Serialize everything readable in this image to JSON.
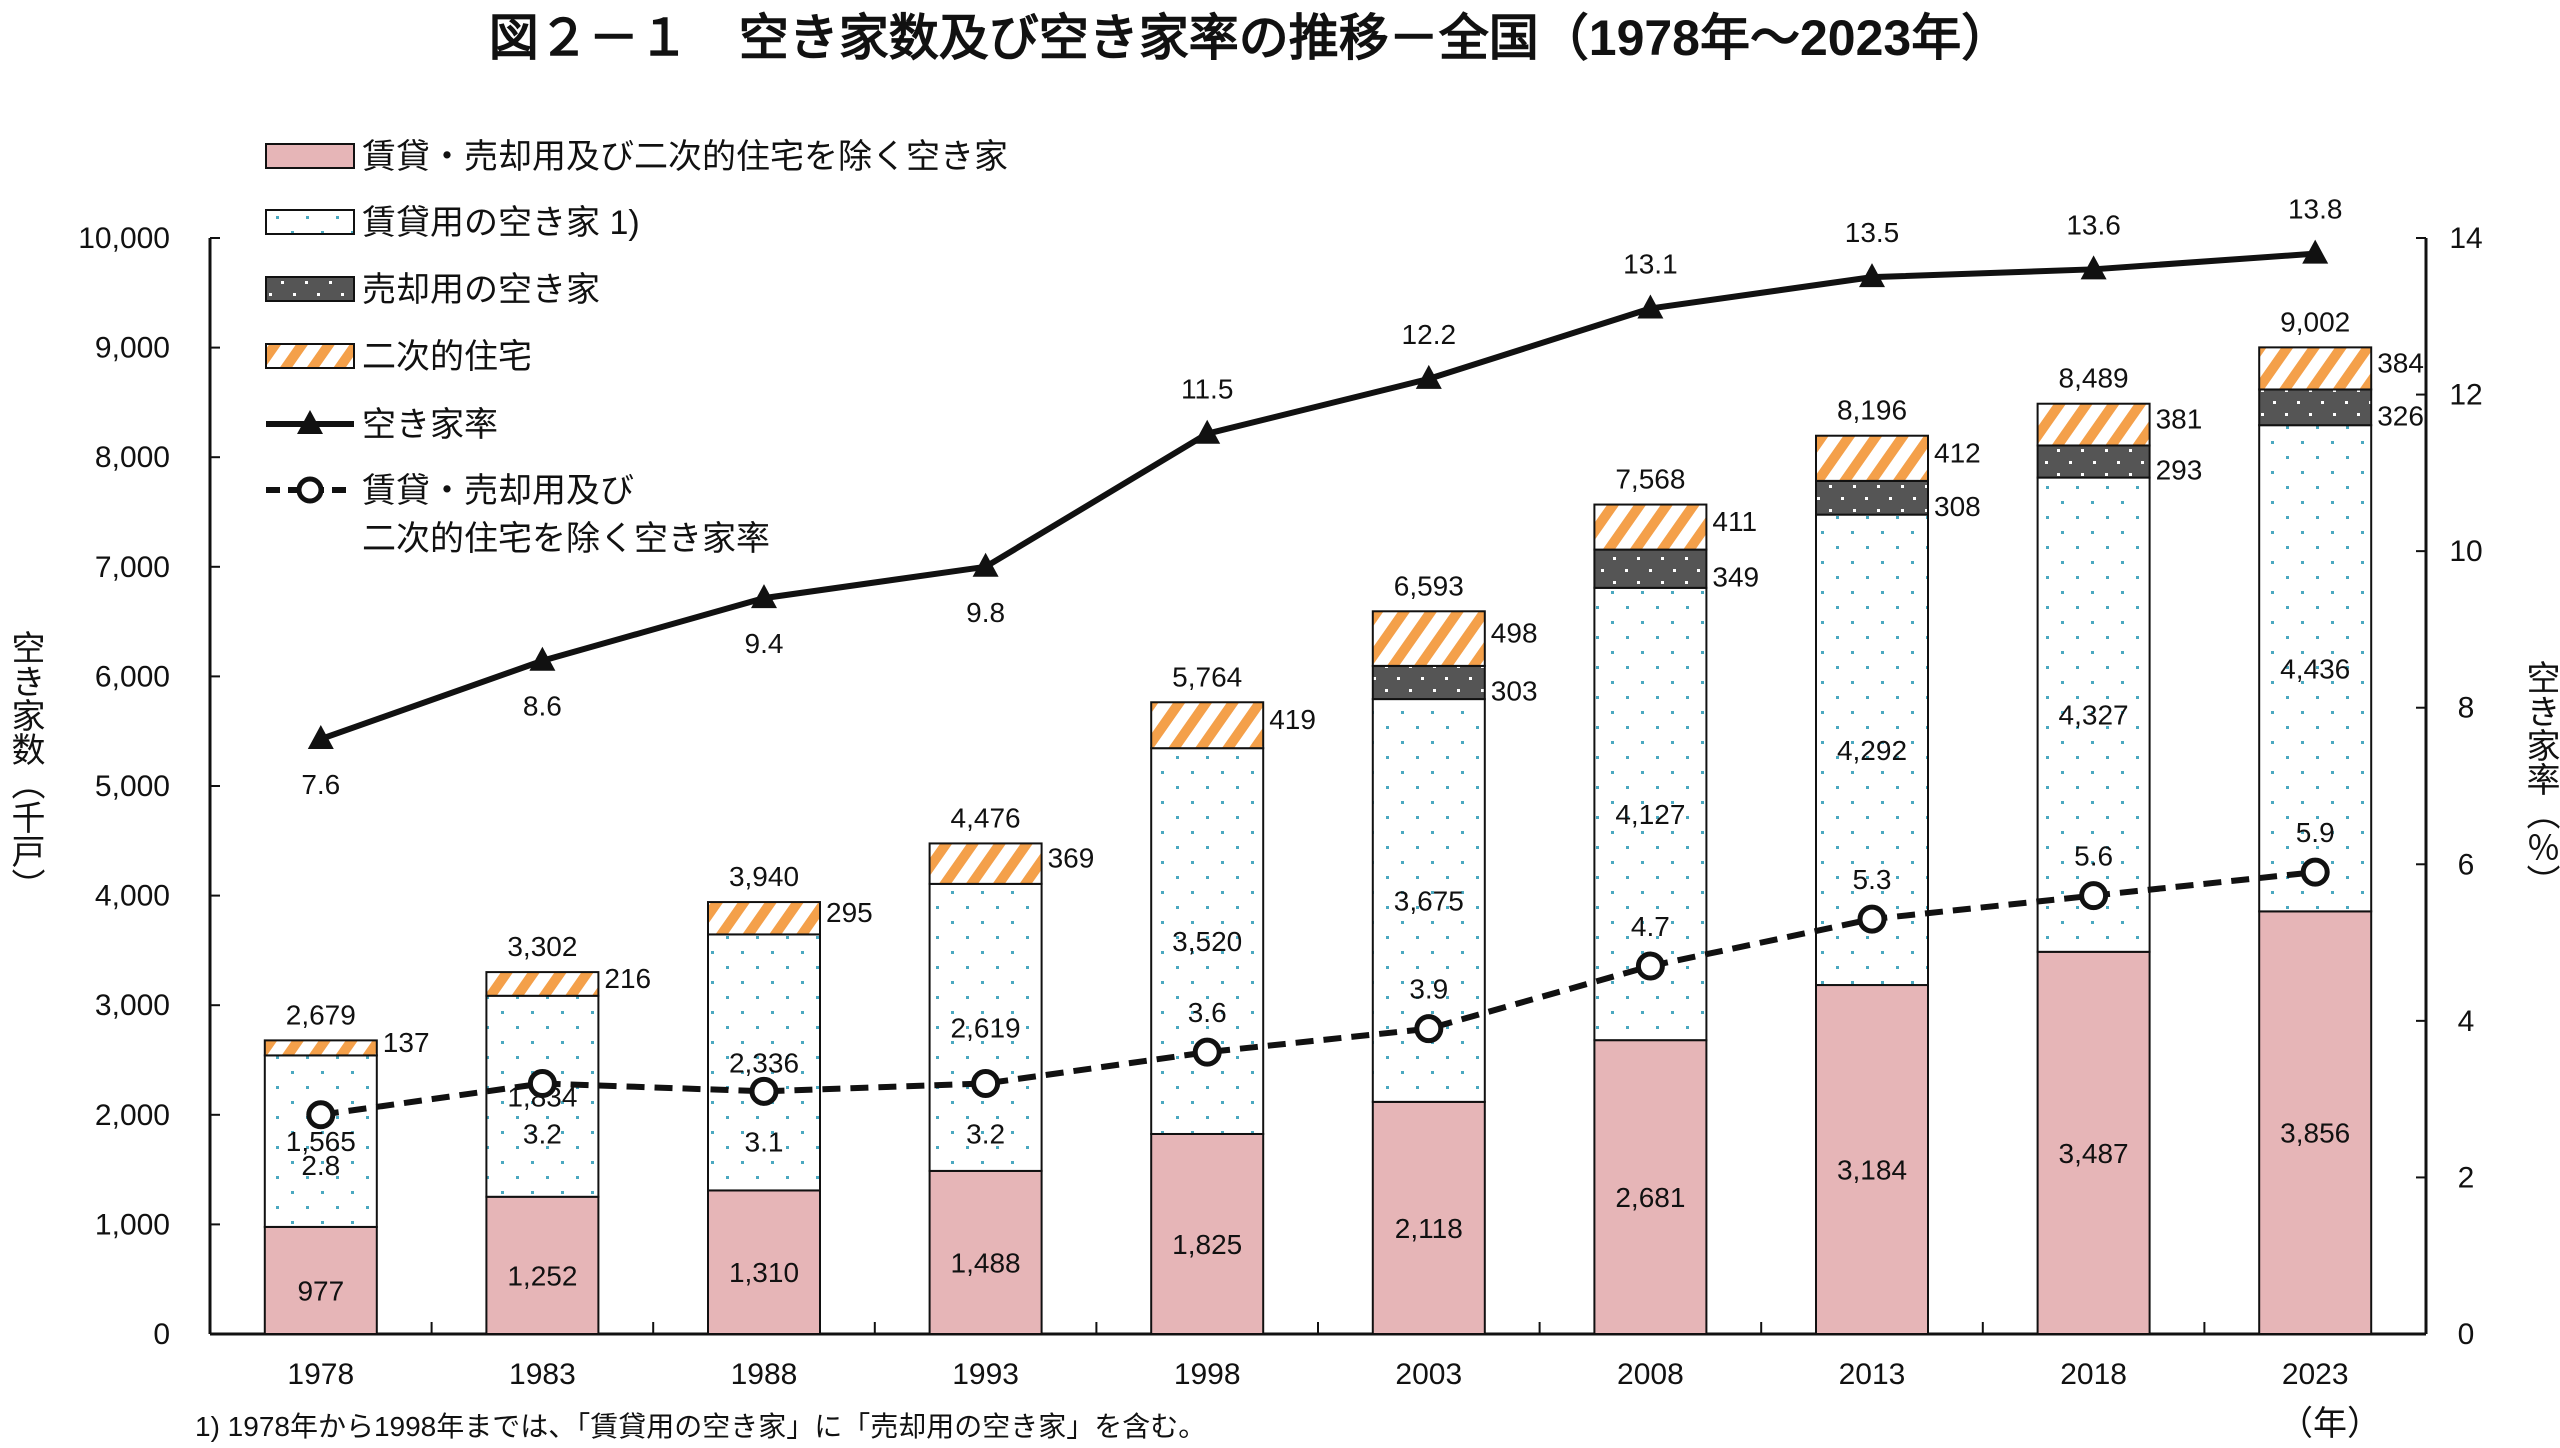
{
  "chart_data": {
    "type": "bar+line",
    "title": "図２－１　空き家数及び空き家率の推移－全国（1978年～2023年）",
    "ylabel": "空き家数（千戸）",
    "y2label": "空き家率（％）",
    "xunit": "（年）",
    "footnote": "1)  1978年から1998年までは、「賃貸用の空き家」に「売却用の空き家」を含む。",
    "ylim": [
      0,
      10000
    ],
    "y2lim": [
      0,
      14
    ],
    "yticks": [
      "0",
      "1,000",
      "2,000",
      "3,000",
      "4,000",
      "5,000",
      "6,000",
      "7,000",
      "8,000",
      "9,000",
      "10,000"
    ],
    "y2ticks": [
      "0",
      "2",
      "4",
      "6",
      "8",
      "10",
      "12",
      "14"
    ],
    "legend_placement": "top-left",
    "categories": [
      "1978",
      "1983",
      "1988",
      "1993",
      "1998",
      "2003",
      "2008",
      "2013",
      "2018",
      "2023"
    ],
    "bar_series": [
      {
        "name": "賃貸・売却用及び二次的住宅を除く空き家",
        "color": "#e6b5b7",
        "values": [
          977,
          1252,
          1310,
          1488,
          1825,
          2118,
          2681,
          3184,
          3487,
          3856
        ],
        "labels": [
          "977",
          "1,252",
          "1,310",
          "1,488",
          "1,825",
          "2,118",
          "2,681",
          "3,184",
          "3,487",
          "3,856"
        ]
      },
      {
        "name": "賃貸用の空き家 1)",
        "color": "#4aa8c0",
        "values": [
          1565,
          1834,
          2336,
          2619,
          3520,
          3675,
          4127,
          4292,
          4327,
          4436
        ],
        "labels": [
          "1,565",
          "1,834",
          "2,336",
          "2,619",
          "3,520",
          "3,675",
          "4,127",
          "4,292",
          "4,327",
          "4,436"
        ]
      },
      {
        "name": "売却用の空き家",
        "color": "#555555",
        "values": [
          null,
          null,
          null,
          null,
          null,
          303,
          349,
          308,
          293,
          326
        ],
        "labels": [
          "",
          "",
          "",
          "",
          "",
          "303",
          "349",
          "308",
          "293",
          "326"
        ]
      },
      {
        "name": "二次的住宅",
        "color": "#f4a04a",
        "values": [
          137,
          216,
          295,
          369,
          419,
          498,
          411,
          412,
          381,
          384
        ],
        "labels": [
          "137",
          "216",
          "295",
          "369",
          "419",
          "498",
          "411",
          "412",
          "381",
          "384"
        ]
      }
    ],
    "totals": [
      2679,
      3302,
      3940,
      4476,
      5764,
      6593,
      7568,
      8196,
      8489,
      9002
    ],
    "total_labels": [
      "2,679",
      "3,302",
      "3,940",
      "4,476",
      "5,764",
      "6,593",
      "7,568",
      "8,196",
      "8,489",
      "9,002"
    ],
    "line_series": [
      {
        "name": "空き家率",
        "style": "solid-triangle",
        "values": [
          7.6,
          8.6,
          9.4,
          9.8,
          11.5,
          12.2,
          13.1,
          13.5,
          13.6,
          13.8
        ],
        "labels": [
          "7.6",
          "8.6",
          "9.4",
          "9.8",
          "11.5",
          "12.2",
          "13.1",
          "13.5",
          "13.6",
          "13.8"
        ]
      },
      {
        "name": "賃貸・売却用及び二次的住宅を除く空き家率",
        "name_lines": [
          "賃貸・売却用及び",
          "二次的住宅を除く空き家率"
        ],
        "style": "dashed-circle",
        "values": [
          2.8,
          3.2,
          3.1,
          3.2,
          3.6,
          3.9,
          4.7,
          5.3,
          5.6,
          5.9
        ],
        "labels": [
          "2.8",
          "3.2",
          "3.1",
          "3.2",
          "3.6",
          "3.9",
          "4.7",
          "5.3",
          "5.6",
          "5.9"
        ]
      }
    ]
  }
}
